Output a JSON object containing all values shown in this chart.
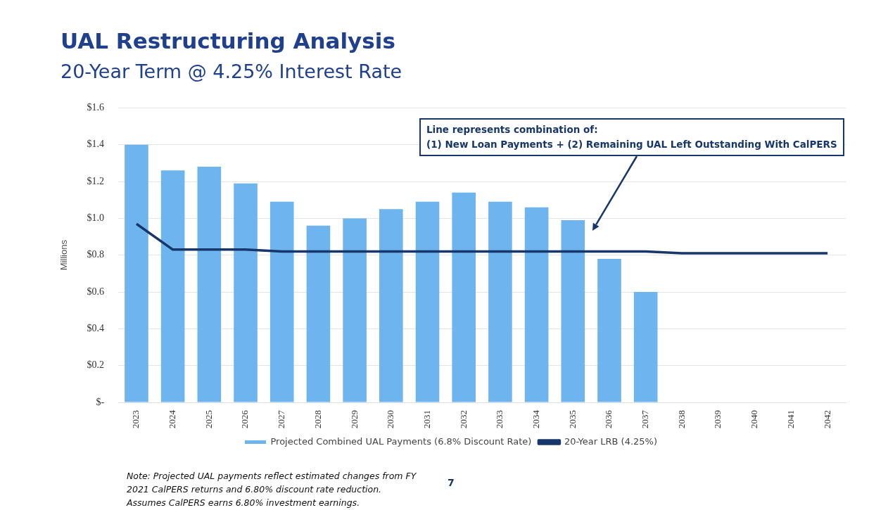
{
  "chart_data": {
    "type": "bar",
    "title": "UAL Restructuring Analysis",
    "subtitle": "20-Year Term @ 4.25% Interest Rate",
    "ylabel": "Millions",
    "categories": [
      "2023",
      "2024",
      "2025",
      "2026",
      "2027",
      "2028",
      "2029",
      "2030",
      "2031",
      "2032",
      "2033",
      "2034",
      "2035",
      "2036",
      "2037",
      "2038",
      "2039",
      "2040",
      "2041",
      "2042"
    ],
    "series": [
      {
        "name": "Projected Combined UAL Payments (6.8% Discount Rate)",
        "color": "#6eb4ee",
        "values": [
          1.4,
          1.26,
          1.28,
          1.19,
          1.09,
          0.96,
          1.0,
          1.05,
          1.09,
          1.14,
          1.09,
          1.06,
          0.99,
          0.78,
          0.6,
          null,
          null,
          null,
          null,
          null
        ]
      },
      {
        "name": "20-Year LRB (4.25%)",
        "type": "line",
        "color": "#17376b",
        "values": [
          0.97,
          0.83,
          0.83,
          0.83,
          0.82,
          0.82,
          0.82,
          0.82,
          0.82,
          0.82,
          0.82,
          0.82,
          0.82,
          0.82,
          0.82,
          0.81,
          0.81,
          0.81,
          0.81,
          0.81
        ]
      }
    ],
    "ylim": [
      0,
      1.6
    ],
    "yticks": [
      {
        "value": 0,
        "label": "$-"
      },
      {
        "value": 0.2,
        "label": "$0.2"
      },
      {
        "value": 0.4,
        "label": "$0.4"
      },
      {
        "value": 0.6,
        "label": "$0.6"
      },
      {
        "value": 0.8,
        "label": "$0.8"
      },
      {
        "value": 1.0,
        "label": "$1.0"
      },
      {
        "value": 1.2,
        "label": "$1.2"
      },
      {
        "value": 1.4,
        "label": "$1.4"
      },
      {
        "value": 1.6,
        "label": "$1.6"
      }
    ],
    "grid": "y",
    "legend": "bottom",
    "marker": "none",
    "line_style": "solid",
    "annotations": [
      "Line represents combination of:\n(1) New Loan Payments + (2) Remaining UAL Left Outstanding With CalPERS",
      "Note: Projected UAL payments reflect estimated changes from FY 2021 CalPERS returns and 6.80% discount rate reduction. Assumes CalPERS earns 6.80% investment earnings.",
      "7"
    ]
  }
}
